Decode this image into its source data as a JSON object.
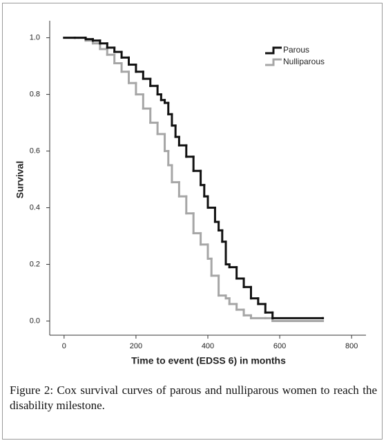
{
  "chart_data": {
    "type": "step",
    "xlabel": "Time to event (EDSS 6) in months",
    "ylabel": "Survival",
    "xlim": [
      -40,
      840
    ],
    "ylim": [
      -0.05,
      1.06
    ],
    "xticks": [
      0,
      200,
      400,
      600,
      800
    ],
    "yticks": [
      {
        "value": 0,
        "label": "0.0"
      },
      {
        "value": 0.2,
        "label": "0.2"
      },
      {
        "value": 0.4,
        "label": "0.4"
      },
      {
        "value": 0.6,
        "label": "0.6"
      },
      {
        "value": 0.8,
        "label": "0.8"
      },
      {
        "value": 1,
        "label": "1.0"
      }
    ],
    "legend": "upper right",
    "series": [
      {
        "name": "Parous",
        "color": "#111111",
        "x": [
          0,
          30,
          60,
          80,
          100,
          120,
          140,
          160,
          180,
          200,
          220,
          240,
          260,
          270,
          280,
          290,
          300,
          310,
          320,
          340,
          360,
          380,
          390,
          400,
          420,
          430,
          440,
          450,
          460,
          480,
          500,
          520,
          540,
          560,
          580,
          720
        ],
        "values": [
          1.0,
          1.0,
          0.995,
          0.99,
          0.98,
          0.965,
          0.95,
          0.93,
          0.905,
          0.88,
          0.855,
          0.83,
          0.8,
          0.78,
          0.77,
          0.73,
          0.69,
          0.65,
          0.62,
          0.58,
          0.53,
          0.48,
          0.44,
          0.4,
          0.35,
          0.32,
          0.28,
          0.2,
          0.19,
          0.15,
          0.12,
          0.08,
          0.06,
          0.03,
          0.01,
          0.01
        ]
      },
      {
        "name": "Nulliparous",
        "color": "#a6a6a6",
        "x": [
          0,
          40,
          60,
          80,
          100,
          120,
          140,
          160,
          180,
          200,
          220,
          240,
          260,
          280,
          290,
          300,
          320,
          340,
          360,
          380,
          400,
          410,
          430,
          450,
          460,
          480,
          500,
          520,
          560,
          580,
          720
        ],
        "values": [
          1.0,
          1.0,
          0.99,
          0.98,
          0.96,
          0.94,
          0.91,
          0.88,
          0.84,
          0.8,
          0.75,
          0.7,
          0.66,
          0.6,
          0.55,
          0.49,
          0.44,
          0.38,
          0.31,
          0.27,
          0.22,
          0.16,
          0.09,
          0.08,
          0.06,
          0.04,
          0.02,
          0.01,
          0.01,
          0.0,
          0.0
        ]
      }
    ],
    "caption": "Figure 2: Cox survival curves of parous and nulliparous women to reach the disability milestone."
  }
}
